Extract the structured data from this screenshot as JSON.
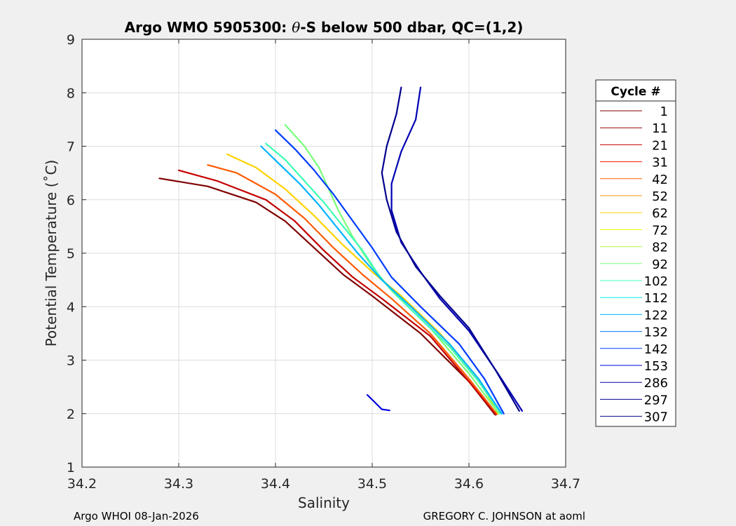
{
  "chart_data": {
    "type": "line",
    "title": "Argo WMO 5905300: θ-S below 500 dbar,  QC=(1,2)",
    "title_parts": {
      "prefix": "Argo WMO 5905300: ",
      "theta": "θ",
      "suffix": "-S below 500 dbar,  QC=(1,2)"
    },
    "xlabel": "Salinity",
    "ylabel": "Potential Temperature (˚C)",
    "xlim": [
      34.2,
      34.7
    ],
    "ylim": [
      1,
      9
    ],
    "xticks": [
      "34.2",
      "34.3",
      "34.4",
      "34.5",
      "34.6",
      "34.7"
    ],
    "yticks": [
      "1",
      "2",
      "3",
      "4",
      "5",
      "6",
      "7",
      "8",
      "9"
    ],
    "grid": true,
    "legend": {
      "title": "Cycle #",
      "placement": "outside-right",
      "entries": [
        {
          "label": "1",
          "color": "#800000"
        },
        {
          "label": "11",
          "color": "#9b0000"
        },
        {
          "label": "21",
          "color": "#c40000"
        },
        {
          "label": "31",
          "color": "#ee1c00"
        },
        {
          "label": "42",
          "color": "#ff5a00"
        },
        {
          "label": "52",
          "color": "#ff9600"
        },
        {
          "label": "62",
          "color": "#ffd200"
        },
        {
          "label": "72",
          "color": "#f0ff00"
        },
        {
          "label": "82",
          "color": "#b4ff34"
        },
        {
          "label": "92",
          "color": "#78ff78"
        },
        {
          "label": "102",
          "color": "#3cffb4"
        },
        {
          "label": "112",
          "color": "#00f0f0"
        },
        {
          "label": "122",
          "color": "#00b4ff"
        },
        {
          "label": "132",
          "color": "#0078ff"
        },
        {
          "label": "142",
          "color": "#003cff"
        },
        {
          "label": "153",
          "color": "#0000e0"
        },
        {
          "label": "286",
          "color": "#0000b4"
        },
        {
          "label": "297",
          "color": "#00008f"
        },
        {
          "label": "307",
          "color": "#000080"
        }
      ]
    },
    "series": [
      {
        "color": "#800000",
        "x": [
          34.28,
          34.33,
          34.38,
          34.41,
          34.44,
          34.47,
          34.5,
          34.55,
          34.6,
          34.627
        ],
        "y": [
          6.4,
          6.25,
          5.95,
          5.6,
          5.1,
          4.6,
          4.2,
          3.5,
          2.6,
          1.98
        ]
      },
      {
        "color": "#c40000",
        "x": [
          34.3,
          34.34,
          34.39,
          34.42,
          34.45,
          34.48,
          34.51,
          34.56,
          34.6,
          34.628
        ],
        "y": [
          6.55,
          6.35,
          6.0,
          5.6,
          5.05,
          4.55,
          4.15,
          3.45,
          2.6,
          1.98
        ]
      },
      {
        "color": "#ff5a00",
        "x": [
          34.33,
          34.36,
          34.4,
          34.43,
          34.46,
          34.49,
          34.52,
          34.56,
          34.6,
          34.629
        ],
        "y": [
          6.65,
          6.5,
          6.1,
          5.65,
          5.1,
          4.6,
          4.15,
          3.5,
          2.65,
          1.99
        ]
      },
      {
        "color": "#ffd200",
        "x": [
          34.35,
          34.38,
          34.41,
          34.44,
          34.47,
          34.5,
          34.53,
          34.57,
          34.61,
          34.63
        ],
        "y": [
          6.85,
          6.6,
          6.2,
          5.7,
          5.15,
          4.65,
          4.2,
          3.5,
          2.65,
          2.0
        ]
      },
      {
        "color": "#78ff78",
        "x": [
          34.41,
          34.43,
          34.445,
          34.455,
          34.465,
          34.48,
          34.5,
          34.52,
          34.56,
          34.6,
          34.631
        ],
        "y": [
          7.4,
          7.0,
          6.6,
          6.2,
          5.8,
          5.3,
          4.75,
          4.3,
          3.6,
          2.75,
          2.0
        ]
      },
      {
        "color": "#3cffb4",
        "x": [
          34.39,
          34.41,
          34.43,
          34.45,
          34.47,
          34.49,
          34.51,
          34.54,
          34.58,
          34.61,
          34.633
        ],
        "y": [
          7.05,
          6.75,
          6.35,
          5.95,
          5.5,
          5.05,
          4.5,
          3.95,
          3.25,
          2.6,
          2.0
        ]
      },
      {
        "color": "#00b4ff",
        "x": [
          34.385,
          34.405,
          34.425,
          34.445,
          34.465,
          34.485,
          34.51,
          34.54,
          34.58,
          34.61,
          34.634
        ],
        "y": [
          7.0,
          6.65,
          6.3,
          5.9,
          5.45,
          5.0,
          4.5,
          4.0,
          3.3,
          2.65,
          2.0
        ]
      },
      {
        "color": "#003cff",
        "x": [
          34.4,
          34.42,
          34.44,
          34.46,
          34.48,
          34.5,
          34.52,
          34.55,
          34.59,
          34.616,
          34.636
        ],
        "y": [
          7.3,
          6.95,
          6.55,
          6.1,
          5.6,
          5.1,
          4.55,
          4.0,
          3.3,
          2.65,
          2.0
        ]
      },
      {
        "color": "#0000e0",
        "x": [
          34.495,
          34.51,
          34.518
        ],
        "y": [
          2.35,
          2.08,
          2.06
        ]
      },
      {
        "color": "#0000b4",
        "x": [
          34.55,
          34.545,
          34.53,
          34.52,
          34.52,
          34.53,
          34.55,
          34.57,
          34.6,
          34.63,
          34.655
        ],
        "y": [
          8.1,
          7.5,
          6.9,
          6.3,
          5.8,
          5.2,
          4.65,
          4.15,
          3.55,
          2.75,
          2.05
        ]
      },
      {
        "color": "#00008f",
        "x": [
          34.53,
          34.525,
          34.515,
          34.51,
          34.515,
          34.525,
          34.545,
          34.57,
          34.6,
          34.628,
          34.652
        ],
        "y": [
          8.1,
          7.6,
          7.0,
          6.5,
          6.0,
          5.4,
          4.75,
          4.2,
          3.6,
          2.8,
          2.05
        ]
      }
    ]
  },
  "footer": {
    "left": "Argo WHOI 08-Jan-2026",
    "right": "GREGORY C. JOHNSON at aoml"
  }
}
